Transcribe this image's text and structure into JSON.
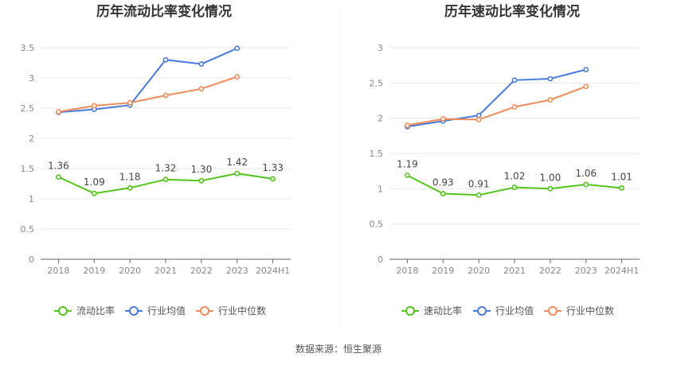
{
  "footer": {
    "source": "数据来源：恒生聚源"
  },
  "chart_data": [
    {
      "type": "line",
      "title": "历年流动比率变化情况",
      "categories": [
        "2018",
        "2019",
        "2020",
        "2021",
        "2022",
        "2023",
        "2024H1"
      ],
      "ylim": [
        0,
        3.5
      ],
      "yticks": [
        "0",
        "0.5",
        "1",
        "1.5",
        "2",
        "2.5",
        "3",
        "3.5"
      ],
      "grid": true,
      "legend_position": "bottom",
      "series": [
        {
          "name": "流动比率",
          "color": "#52c41a",
          "labels": true,
          "values": [
            1.36,
            1.09,
            1.18,
            1.32,
            1.3,
            1.42,
            1.33
          ],
          "value_labels": [
            "1.36",
            "1.09",
            "1.18",
            "1.32",
            "1.30",
            "1.42",
            "1.33"
          ]
        },
        {
          "name": "行业均值",
          "color": "#4a7bdc",
          "labels": false,
          "values": [
            2.43,
            2.48,
            2.55,
            3.3,
            3.23,
            3.49,
            null
          ]
        },
        {
          "name": "行业中位数",
          "color": "#f08c5a",
          "labels": false,
          "values": [
            2.44,
            2.54,
            2.59,
            2.71,
            2.82,
            3.02,
            null
          ]
        }
      ]
    },
    {
      "type": "line",
      "title": "历年速动比率变化情况",
      "categories": [
        "2018",
        "2019",
        "2020",
        "2021",
        "2022",
        "2023",
        "2024H1"
      ],
      "ylim": [
        0,
        3
      ],
      "yticks": [
        "0",
        "0.5",
        "1",
        "1.5",
        "2",
        "2.5",
        "3"
      ],
      "grid": true,
      "legend_position": "bottom",
      "series": [
        {
          "name": "速动比率",
          "color": "#52c41a",
          "labels": true,
          "values": [
            1.19,
            0.93,
            0.91,
            1.02,
            1.0,
            1.06,
            1.01
          ],
          "value_labels": [
            "1.19",
            "0.93",
            "0.91",
            "1.02",
            "1.00",
            "1.06",
            "1.01"
          ]
        },
        {
          "name": "行业均值",
          "color": "#4a7bdc",
          "labels": false,
          "values": [
            1.88,
            1.96,
            2.04,
            2.54,
            2.56,
            2.69,
            null
          ]
        },
        {
          "name": "行业中位数",
          "color": "#f08c5a",
          "labels": false,
          "values": [
            1.9,
            1.99,
            1.98,
            2.16,
            2.26,
            2.45,
            null
          ]
        }
      ]
    }
  ]
}
